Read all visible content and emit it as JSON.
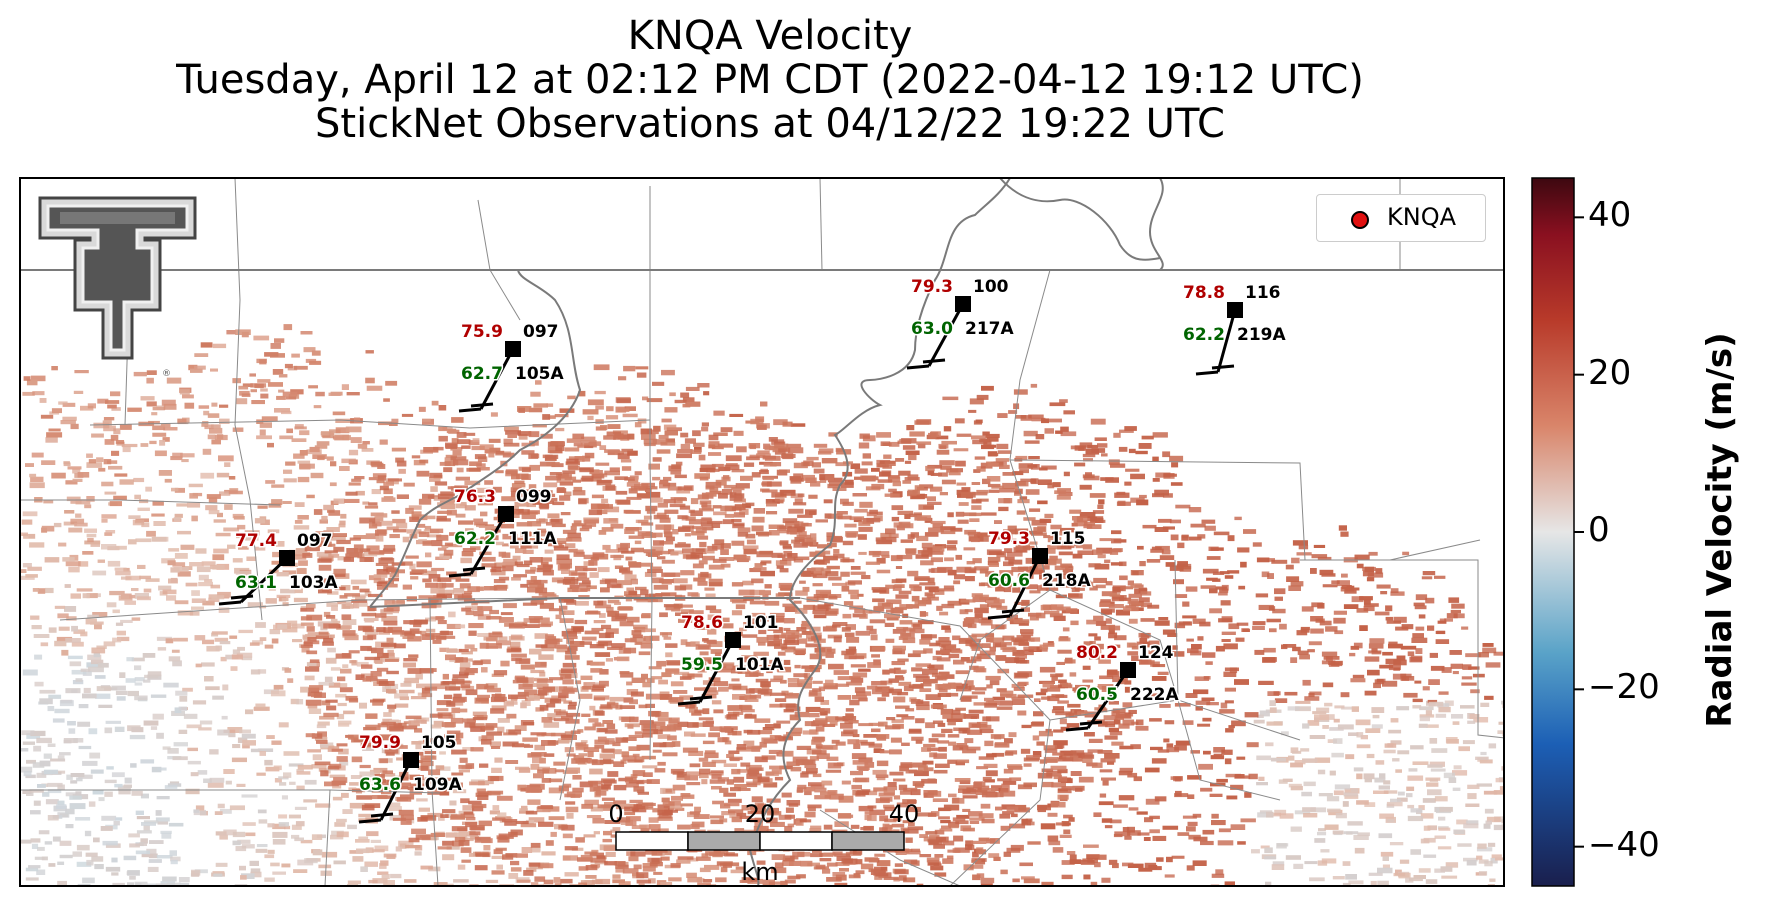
{
  "title": {
    "line1": "KNQA Velocity",
    "line2": "Tuesday, April 12 at 02:12 PM CDT (2022-04-12 19:12 UTC)",
    "line3": "StickNet Observations at 04/12/22 19:22 UTC"
  },
  "legend": {
    "label": "KNQA",
    "marker_color": "#e01010"
  },
  "colorbar": {
    "label": "Radial Velocity (m/s)",
    "ticks": [
      "40",
      "20",
      "0",
      "−20",
      "−40"
    ],
    "tick_values": [
      40,
      20,
      0,
      -20,
      -40
    ],
    "range": [
      -45,
      45
    ],
    "colors": [
      "#1a1f4d",
      "#1c5fb5",
      "#5aa3c8",
      "#e6e6e6",
      "#d9856a",
      "#b83a2a",
      "#8a1020",
      "#3d0810"
    ]
  },
  "scale_bar": {
    "unit": "km",
    "ticks": [
      "0",
      "20",
      "40"
    ]
  },
  "stations": [
    {
      "temp": "75.9",
      "dew": "62.7",
      "dir": "097",
      "id": "105A"
    },
    {
      "temp": "79.3",
      "dew": "63.0",
      "dir": "100",
      "id": "217A"
    },
    {
      "temp": "78.8",
      "dew": "62.2",
      "dir": "116",
      "id": "219A"
    },
    {
      "temp": "76.3",
      "dew": "62.2",
      "dir": "099",
      "id": "111A"
    },
    {
      "temp": "77.4",
      "dew": "63.1",
      "dir": "097",
      "id": "103A"
    },
    {
      "temp": "79.3",
      "dew": "60.6",
      "dir": "115",
      "id": "218A"
    },
    {
      "temp": "78.6",
      "dew": "59.5",
      "dir": "101",
      "id": "101A"
    },
    {
      "temp": "80.2",
      "dew": "60.5",
      "dir": "124",
      "id": "222A"
    },
    {
      "temp": "79.9",
      "dew": "63.6",
      "dir": "105",
      "id": "109A"
    }
  ],
  "colors": {
    "temp": "#b00000",
    "dew": "#006400",
    "id": "#000000"
  },
  "logo": {
    "mark": "double-T"
  }
}
